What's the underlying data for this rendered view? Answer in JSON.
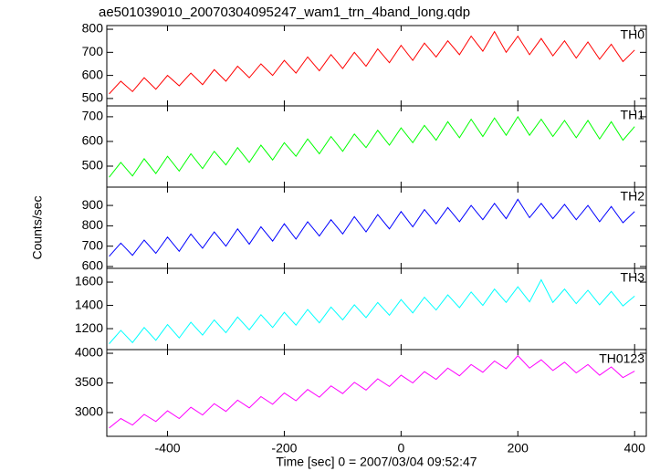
{
  "chart_data": [
    {
      "type": "line",
      "title": "ae501039010_20070304095247_wam1_trn_4band_long.qdp",
      "x": [
        -500,
        -480,
        -460,
        -440,
        -420,
        -400,
        -380,
        -360,
        -340,
        -320,
        -300,
        -280,
        -260,
        -240,
        -220,
        -200,
        -180,
        -160,
        -140,
        -120,
        -100,
        -80,
        -60,
        -40,
        -20,
        0,
        20,
        40,
        60,
        80,
        100,
        120,
        140,
        160,
        180,
        200,
        220,
        240,
        260,
        280,
        300,
        320,
        340,
        360,
        380,
        400
      ],
      "series": [
        {
          "name": "TH0",
          "color": "#ff0000",
          "values": [
            520,
            575,
            530,
            590,
            540,
            600,
            555,
            610,
            560,
            625,
            575,
            640,
            590,
            650,
            600,
            665,
            610,
            680,
            620,
            690,
            630,
            700,
            640,
            715,
            655,
            730,
            665,
            740,
            680,
            750,
            690,
            770,
            705,
            790,
            700,
            770,
            690,
            760,
            685,
            750,
            675,
            745,
            670,
            735,
            660,
            710
          ]
        }
      ],
      "xlim": [
        -504,
        420
      ],
      "xticks": [
        -400,
        -200,
        0,
        200,
        400
      ],
      "ylim": [
        468,
        816
      ],
      "yticks": [
        500,
        600,
        700,
        800
      ]
    },
    {
      "type": "line",
      "x": [
        -500,
        -480,
        -460,
        -440,
        -420,
        -400,
        -380,
        -360,
        -340,
        -320,
        -300,
        -280,
        -260,
        -240,
        -220,
        -200,
        -180,
        -160,
        -140,
        -120,
        -100,
        -80,
        -60,
        -40,
        -20,
        0,
        20,
        40,
        60,
        80,
        100,
        120,
        140,
        160,
        180,
        200,
        220,
        240,
        260,
        280,
        300,
        320,
        340,
        360,
        380,
        400
      ],
      "series": [
        {
          "name": "TH1",
          "color": "#00ff00",
          "values": [
            455,
            515,
            460,
            530,
            470,
            540,
            480,
            550,
            490,
            560,
            505,
            575,
            515,
            585,
            525,
            595,
            540,
            610,
            550,
            620,
            560,
            630,
            575,
            645,
            585,
            655,
            595,
            665,
            605,
            680,
            615,
            690,
            620,
            695,
            625,
            700,
            625,
            690,
            620,
            685,
            615,
            685,
            610,
            680,
            605,
            660
          ]
        }
      ],
      "xlim": [
        -504,
        420
      ],
      "xticks": [
        -400,
        -200,
        0,
        200,
        400
      ],
      "ylim": [
        415,
        744
      ],
      "yticks": [
        500,
        600,
        700
      ]
    },
    {
      "type": "line",
      "ylabel": "Counts/sec",
      "x": [
        -500,
        -480,
        -460,
        -440,
        -420,
        -400,
        -380,
        -360,
        -340,
        -320,
        -300,
        -280,
        -260,
        -240,
        -220,
        -200,
        -180,
        -160,
        -140,
        -120,
        -100,
        -80,
        -60,
        -40,
        -20,
        0,
        20,
        40,
        60,
        80,
        100,
        120,
        140,
        160,
        180,
        200,
        220,
        240,
        260,
        280,
        300,
        320,
        340,
        360,
        380,
        400
      ],
      "series": [
        {
          "name": "TH2",
          "color": "#0000ff",
          "values": [
            650,
            715,
            655,
            730,
            665,
            745,
            675,
            760,
            690,
            770,
            700,
            785,
            710,
            795,
            725,
            810,
            735,
            820,
            750,
            830,
            760,
            845,
            770,
            855,
            785,
            870,
            795,
            880,
            810,
            890,
            820,
            900,
            830,
            910,
            835,
            930,
            840,
            910,
            835,
            905,
            830,
            900,
            820,
            895,
            815,
            870
          ]
        }
      ],
      "xlim": [
        -504,
        420
      ],
      "xticks": [
        -400,
        -200,
        0,
        200,
        400
      ],
      "ylim": [
        591,
        990
      ],
      "yticks": [
        600,
        700,
        800,
        900
      ]
    },
    {
      "type": "line",
      "x": [
        -500,
        -480,
        -460,
        -440,
        -420,
        -400,
        -380,
        -360,
        -340,
        -320,
        -300,
        -280,
        -260,
        -240,
        -220,
        -200,
        -180,
        -160,
        -140,
        -120,
        -100,
        -80,
        -60,
        -40,
        -20,
        0,
        20,
        40,
        60,
        80,
        100,
        120,
        140,
        160,
        180,
        200,
        220,
        240,
        260,
        280,
        300,
        320,
        340,
        360,
        380,
        400
      ],
      "series": [
        {
          "name": "TH3",
          "color": "#00ffff",
          "values": [
            1070,
            1185,
            1080,
            1210,
            1100,
            1235,
            1120,
            1255,
            1145,
            1275,
            1165,
            1300,
            1190,
            1320,
            1210,
            1340,
            1230,
            1365,
            1250,
            1385,
            1275,
            1405,
            1295,
            1425,
            1315,
            1450,
            1335,
            1470,
            1360,
            1490,
            1380,
            1515,
            1400,
            1540,
            1425,
            1560,
            1430,
            1620,
            1425,
            1540,
            1415,
            1530,
            1405,
            1520,
            1395,
            1480
          ]
        }
      ],
      "xlim": [
        -504,
        420
      ],
      "xticks": [
        -400,
        -200,
        0,
        200,
        400
      ],
      "ylim": [
        1020,
        1718
      ],
      "yticks": [
        1200,
        1400,
        1600
      ]
    },
    {
      "type": "line",
      "xlabel": "Time [sec] 0 = 2007/03/04 09:52:47",
      "x": [
        -500,
        -480,
        -460,
        -440,
        -420,
        -400,
        -380,
        -360,
        -340,
        -320,
        -300,
        -280,
        -260,
        -240,
        -220,
        -200,
        -180,
        -160,
        -140,
        -120,
        -100,
        -80,
        -60,
        -40,
        -20,
        0,
        20,
        40,
        60,
        80,
        100,
        120,
        140,
        160,
        180,
        200,
        220,
        240,
        260,
        280,
        300,
        320,
        340,
        360,
        380,
        400
      ],
      "series": [
        {
          "name": "TH0123",
          "color": "#ff00ff",
          "values": [
            2740,
            2900,
            2790,
            2970,
            2850,
            3030,
            2900,
            3090,
            2960,
            3150,
            3020,
            3210,
            3080,
            3270,
            3140,
            3330,
            3200,
            3390,
            3260,
            3450,
            3320,
            3510,
            3380,
            3570,
            3440,
            3630,
            3500,
            3690,
            3560,
            3750,
            3620,
            3810,
            3680,
            3870,
            3740,
            3960,
            3750,
            3890,
            3710,
            3850,
            3670,
            3810,
            3630,
            3770,
            3590,
            3700
          ]
        }
      ],
      "xlim": [
        -504,
        420
      ],
      "xticks": [
        -400,
        -200,
        0,
        200,
        400
      ],
      "ylim": [
        2600,
        4062
      ],
      "yticks": [
        3000,
        3500,
        4000
      ]
    }
  ]
}
